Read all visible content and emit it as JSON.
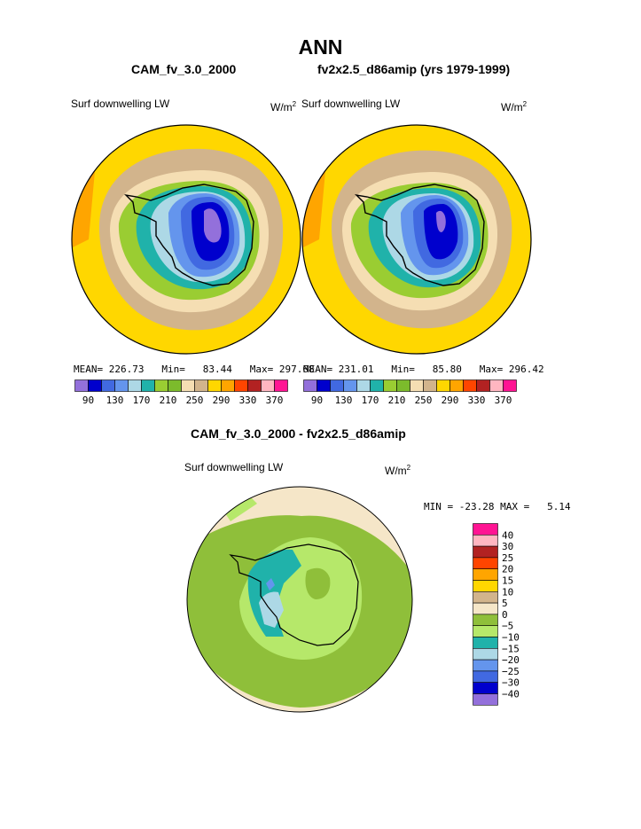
{
  "page": {
    "title": "ANN",
    "left_header": "CAM_fv_3.0_2000",
    "right_header": "fv2x2.5_d86amip (yrs 1979-1999)",
    "diff_header": "CAM_fv_3.0_2000 - fv2x2.5_d86amip"
  },
  "colors": {
    "abs_scale": [
      "#9370db",
      "#0000cd",
      "#4169e1",
      "#6495ed",
      "#add8e6",
      "#20b2aa",
      "#9acd32",
      "#7cbb2c",
      "#f5deb3",
      "#d2b48c",
      "#ffd700",
      "#ffa500",
      "#ff4500",
      "#b22222",
      "#ffb6c1",
      "#ff1493"
    ],
    "diff_scale": [
      "#9370db",
      "#0000cd",
      "#4169e1",
      "#6495ed",
      "#add8e6",
      "#20b2aa",
      "#b6e86a",
      "#8fbf3a",
      "#f5e6c8",
      "#d2b48c",
      "#ffd700",
      "#ffa500",
      "#ff4500",
      "#b22222",
      "#ffb6c1",
      "#ff1493"
    ],
    "coastline": "#000000"
  },
  "chart_data": [
    {
      "type": "heatmap",
      "title": "CAM_fv_3.0_2000",
      "variable": "Surf downwelling LW",
      "units": "W/m",
      "units_sup": "2",
      "projection": "south polar stereographic",
      "stats": {
        "mean_label": "MEAN=",
        "mean": "226.73",
        "min_label": "Min=",
        "min": "83.44",
        "max_label": "Max=",
        "max": "297.68"
      },
      "colorbar_labels": [
        "90",
        "130",
        "170",
        "210",
        "250",
        "290",
        "330",
        "370"
      ]
    },
    {
      "type": "heatmap",
      "title": "fv2x2.5_d86amip (yrs 1979-1999)",
      "variable": "Surf downwelling LW",
      "units": "W/m",
      "units_sup": "2",
      "projection": "south polar stereographic",
      "stats": {
        "mean_label": "MEAN=",
        "mean": "231.01",
        "min_label": "Min=",
        "min": "85.80",
        "max_label": "Max=",
        "max": "296.42"
      },
      "colorbar_labels": [
        "90",
        "130",
        "170",
        "210",
        "250",
        "290",
        "330",
        "370"
      ]
    },
    {
      "type": "heatmap",
      "title": "CAM_fv_3.0_2000 - fv2x2.5_d86amip",
      "variable": "Surf downwelling LW",
      "units": "W/m",
      "units_sup": "2",
      "projection": "south polar stereographic",
      "stats": {
        "min_label": "MIN =",
        "min": "-23.28",
        "max_label": "MAX =",
        "max": "5.14"
      },
      "colorbar_labels": [
        "40",
        "30",
        "25",
        "20",
        "15",
        "10",
        "5",
        "0",
        "-5",
        "-10",
        "-15",
        "-20",
        "-25",
        "-30",
        "-40"
      ]
    }
  ]
}
